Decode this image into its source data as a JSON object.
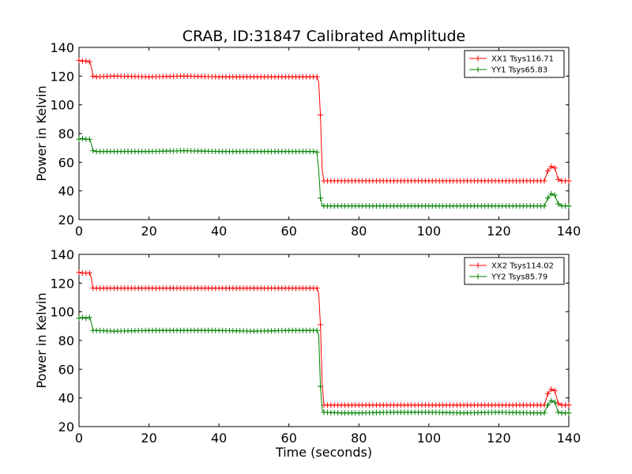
{
  "chart_data": [
    {
      "type": "line",
      "title": "CRAB, ID:31847 Calibrated Amplitude",
      "xlabel": "",
      "ylabel": "Power in Kelvin",
      "xlim": [
        0,
        140
      ],
      "ylim": [
        20,
        140
      ],
      "xticks": [
        "0",
        "20",
        "40",
        "60",
        "80",
        "100",
        "120",
        "140"
      ],
      "yticks": [
        "20",
        "40",
        "60",
        "80",
        "100",
        "120",
        "140"
      ],
      "legend_position": "top-right",
      "grid": false,
      "series": [
        {
          "name": "XX1 Tsys116.71",
          "color": "#ff0000",
          "marker": "plus",
          "x": [
            0,
            1,
            2,
            3,
            3.5,
            4,
            5,
            10,
            20,
            30,
            40,
            50,
            60,
            66,
            67,
            68,
            68.5,
            69,
            69.5,
            70,
            75,
            80,
            90,
            100,
            110,
            120,
            130,
            133,
            134,
            135,
            136,
            137,
            138,
            139,
            140
          ],
          "y": [
            131,
            130.5,
            130.5,
            130,
            127,
            120,
            119.5,
            120,
            119.5,
            120,
            119.5,
            119.5,
            119.5,
            119.5,
            119.5,
            119.5,
            116,
            93,
            55,
            47,
            47,
            47,
            47,
            47,
            47,
            47,
            47,
            47,
            54,
            57,
            56,
            48,
            47,
            47,
            47
          ]
        },
        {
          "name": "YY1 Tsys65.83",
          "color": "#008000",
          "marker": "plus",
          "x": [
            0,
            1,
            2,
            3,
            3.5,
            4,
            5,
            10,
            20,
            30,
            40,
            50,
            60,
            66,
            67,
            68,
            68.5,
            69,
            69.5,
            70,
            75,
            80,
            90,
            100,
            110,
            120,
            130,
            133,
            134,
            135,
            136,
            137,
            138,
            139,
            140
          ],
          "y": [
            76,
            76.5,
            76,
            76,
            73,
            68,
            67.5,
            67.5,
            67.5,
            68,
            67.5,
            67.5,
            67.5,
            67.5,
            67.5,
            67,
            55,
            35,
            30,
            29.5,
            29.5,
            29.5,
            29.5,
            29.5,
            29.5,
            29.5,
            29.5,
            29.5,
            35,
            38,
            37,
            31,
            29.5,
            29.5,
            29.5
          ]
        }
      ]
    },
    {
      "type": "line",
      "title": "",
      "xlabel": "Time (seconds)",
      "ylabel": "Power in Kelvin",
      "xlim": [
        0,
        140
      ],
      "ylim": [
        20,
        140
      ],
      "xticks": [
        "0",
        "20",
        "40",
        "60",
        "80",
        "100",
        "120",
        "140"
      ],
      "yticks": [
        "20",
        "40",
        "60",
        "80",
        "100",
        "120",
        "140"
      ],
      "legend_position": "top-right",
      "grid": false,
      "series": [
        {
          "name": "XX2 Tsys114.02",
          "color": "#ff0000",
          "marker": "plus",
          "x": [
            0,
            1,
            2,
            3,
            3.5,
            4,
            5,
            10,
            20,
            30,
            40,
            50,
            60,
            66,
            67,
            68,
            68.5,
            69,
            69.5,
            70,
            75,
            80,
            90,
            100,
            110,
            120,
            130,
            133,
            134,
            135,
            136,
            137,
            138,
            139,
            140
          ],
          "y": [
            127.5,
            127,
            127,
            127,
            124,
            116.5,
            116.5,
            116.5,
            116.5,
            116.5,
            116.5,
            116.5,
            116.5,
            116.5,
            116.5,
            116.5,
            113,
            91,
            50,
            35,
            35,
            35,
            35,
            35,
            35,
            35,
            35,
            35,
            43,
            46,
            45,
            36,
            35,
            35,
            35
          ]
        },
        {
          "name": "YY2 Tsys85.79",
          "color": "#008000",
          "marker": "plus",
          "x": [
            0,
            1,
            2,
            3,
            3.5,
            4,
            5,
            10,
            20,
            30,
            40,
            50,
            60,
            66,
            67,
            68,
            68.5,
            69,
            69.5,
            70,
            75,
            80,
            90,
            100,
            110,
            120,
            130,
            133,
            134,
            135,
            136,
            137,
            138,
            139,
            140
          ],
          "y": [
            95.5,
            96,
            95.5,
            96,
            93,
            87,
            87,
            86.5,
            87,
            87,
            87,
            86.5,
            87,
            87,
            87,
            87,
            84,
            48,
            32,
            30,
            29.5,
            29.5,
            30,
            30,
            29.5,
            30,
            29.5,
            29.5,
            35,
            38,
            37,
            30,
            29.5,
            29.5,
            29.5
          ]
        }
      ]
    }
  ]
}
